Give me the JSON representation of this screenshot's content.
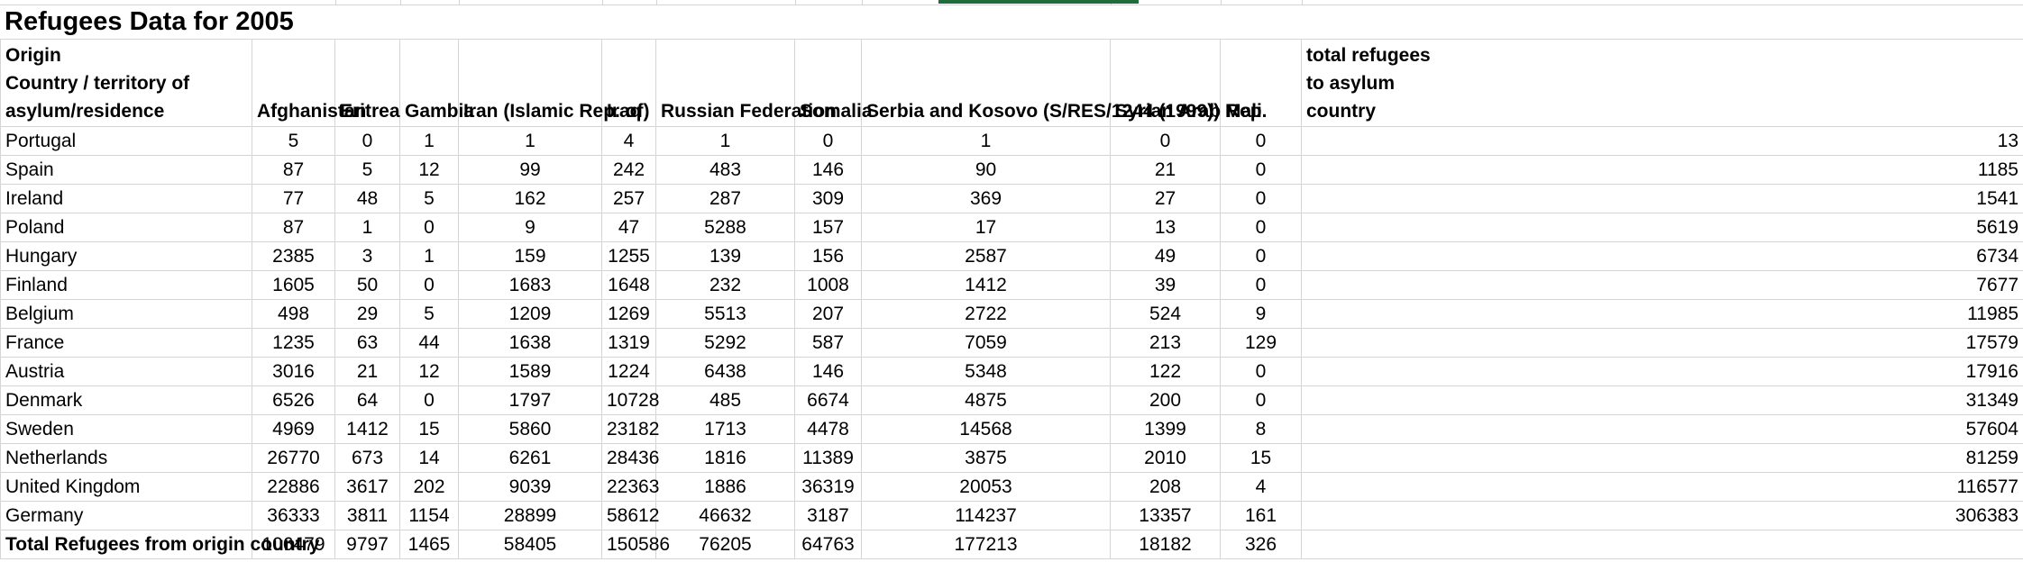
{
  "sheet": {
    "title": "Refugees Data for 2005",
    "header": {
      "row_label": [
        "Origin",
        "Country / territory of",
        "asylum/residence"
      ],
      "columns": [
        "Afghanistan",
        "Eritrea",
        "Gambia",
        "Iran (Islamic Rep. of)",
        "Iraq",
        "Russian Federation",
        "Somalia",
        "Serbia and Kosovo (S/RES/1244 (1999))",
        "Syrian Arab Rep.",
        "Mali"
      ],
      "total_column": [
        "total refugees",
        "to asylum",
        "country"
      ]
    },
    "rows": [
      {
        "label": "Portugal",
        "values": [
          "5",
          "0",
          "1",
          "1",
          "4",
          "1",
          "0",
          "1",
          "0",
          "0"
        ],
        "total": "13"
      },
      {
        "label": "Spain",
        "values": [
          "87",
          "5",
          "12",
          "99",
          "242",
          "483",
          "146",
          "90",
          "21",
          "0"
        ],
        "total": "1185"
      },
      {
        "label": "Ireland",
        "values": [
          "77",
          "48",
          "5",
          "162",
          "257",
          "287",
          "309",
          "369",
          "27",
          "0"
        ],
        "total": "1541"
      },
      {
        "label": "Poland",
        "values": [
          "87",
          "1",
          "0",
          "9",
          "47",
          "5288",
          "157",
          "17",
          "13",
          "0"
        ],
        "total": "5619"
      },
      {
        "label": "Hungary",
        "values": [
          "2385",
          "3",
          "1",
          "159",
          "1255",
          "139",
          "156",
          "2587",
          "49",
          "0"
        ],
        "total": "6734"
      },
      {
        "label": "Finland",
        "values": [
          "1605",
          "50",
          "0",
          "1683",
          "1648",
          "232",
          "1008",
          "1412",
          "39",
          "0"
        ],
        "total": "7677"
      },
      {
        "label": "Belgium",
        "values": [
          "498",
          "29",
          "5",
          "1209",
          "1269",
          "5513",
          "207",
          "2722",
          "524",
          "9"
        ],
        "total": "11985"
      },
      {
        "label": "France",
        "values": [
          "1235",
          "63",
          "44",
          "1638",
          "1319",
          "5292",
          "587",
          "7059",
          "213",
          "129"
        ],
        "total": "17579"
      },
      {
        "label": "Austria",
        "values": [
          "3016",
          "21",
          "12",
          "1589",
          "1224",
          "6438",
          "146",
          "5348",
          "122",
          "0"
        ],
        "total": "17916"
      },
      {
        "label": "Denmark",
        "values": [
          "6526",
          "64",
          "0",
          "1797",
          "10728",
          "485",
          "6674",
          "4875",
          "200",
          "0"
        ],
        "total": "31349"
      },
      {
        "label": "Sweden",
        "values": [
          "4969",
          "1412",
          "15",
          "5860",
          "23182",
          "1713",
          "4478",
          "14568",
          "1399",
          "8"
        ],
        "total": "57604"
      },
      {
        "label": "Netherlands",
        "values": [
          "26770",
          "673",
          "14",
          "6261",
          "28436",
          "1816",
          "11389",
          "3875",
          "2010",
          "15"
        ],
        "total": "81259"
      },
      {
        "label": "United Kingdom",
        "values": [
          "22886",
          "3617",
          "202",
          "9039",
          "22363",
          "1886",
          "36319",
          "20053",
          "208",
          "4"
        ],
        "total": "116577"
      },
      {
        "label": "Germany",
        "values": [
          "36333",
          "3811",
          "1154",
          "28899",
          "58612",
          "46632",
          "3187",
          "114237",
          "13357",
          "161"
        ],
        "total": "306383"
      }
    ],
    "total_row": {
      "label": "Total Refugees from origin country",
      "values": [
        "106479",
        "9797",
        "1465",
        "58405",
        "150586",
        "76205",
        "64763",
        "177213",
        "18182",
        "326"
      ],
      "total": ""
    }
  }
}
